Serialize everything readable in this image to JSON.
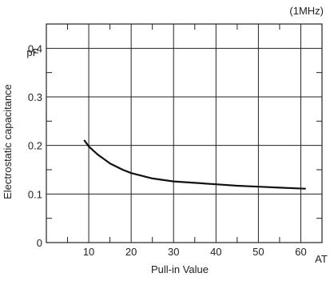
{
  "chart_data": {
    "type": "line",
    "annotation": "(1MHz)",
    "xlabel": "Pull-in Value",
    "ylabel": "Electrostatic capacitance",
    "y_unit": "pF",
    "x_unit": "AT",
    "xlim": [
      0,
      65
    ],
    "ylim": [
      0,
      0.45
    ],
    "x_ticks": [
      10,
      20,
      30,
      40,
      50,
      60
    ],
    "x_tick_labels": [
      "10",
      "20",
      "30",
      "40",
      "50",
      "60"
    ],
    "y_ticks": [
      0,
      0.1,
      0.2,
      0.3,
      0.4
    ],
    "y_tick_labels": [
      "0",
      "0.1",
      "0.2",
      "0.3",
      "0.4"
    ],
    "grid": true,
    "series": [
      {
        "x": [
          9,
          10,
          12,
          15,
          18,
          20,
          25,
          30,
          35,
          40,
          45,
          50,
          55,
          61
        ],
        "y": [
          0.21,
          0.198,
          0.182,
          0.163,
          0.15,
          0.143,
          0.132,
          0.126,
          0.123,
          0.12,
          0.117,
          0.115,
          0.113,
          0.111
        ]
      }
    ]
  }
}
